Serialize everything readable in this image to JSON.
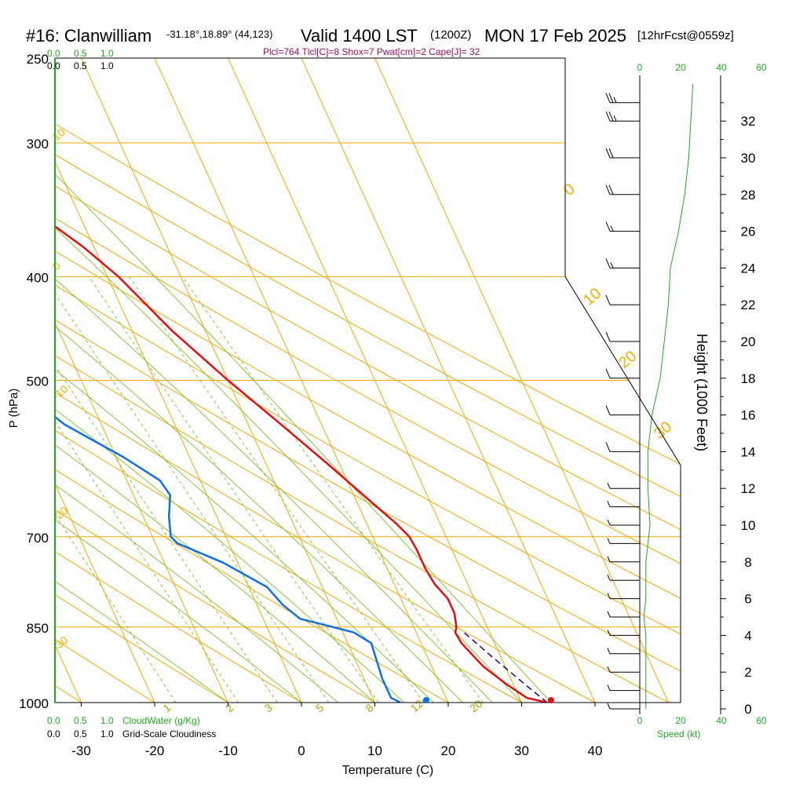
{
  "header": {
    "station": "#16: Clanwilliam",
    "coords": "-31.18°,18.89° (44,123)",
    "valid": "Valid 1400 LST",
    "utc": "(1200Z)",
    "date": "MON 17 Feb 2025",
    "forecast": "[12hrFcst@0559z]",
    "indices": "Plcl=764 Tlcl[C]=8 Shox=7 Pwat[cm]=2 Cape[J]= 32"
  },
  "colors": {
    "isobar": "#f2a800",
    "dry_adiabat": "#f2a800",
    "moist_adiabat": "#8cc43c",
    "mixing_ratio": "#8cc43c",
    "temperature": "#e01010",
    "dewpoint": "#1070e0",
    "parcel": "#200080",
    "speed": "#22aa22",
    "indices_text": "#a0105a"
  },
  "chart_data": {
    "type": "line",
    "subtype": "skew-T log-P sounding",
    "xlabel": "Temperature (C)",
    "ylabel": "P (hPa)",
    "y2label": "Height (1000 Feet)",
    "x_ticks": [
      "-30",
      "-20",
      "-10",
      "0",
      "10",
      "20",
      "30",
      "40"
    ],
    "y_ticks": [
      "250",
      "300",
      "400",
      "500",
      "700",
      "850",
      "1000"
    ],
    "height_ticks": [
      "0",
      "2",
      "4",
      "6",
      "8",
      "10",
      "12",
      "14",
      "16",
      "18",
      "20",
      "22",
      "24",
      "26",
      "28",
      "30",
      "32"
    ],
    "cloudwater_scale": [
      "0.0",
      "0.5",
      "1.0"
    ],
    "cloudiness_scale": [
      "0.0",
      "0.5",
      "1.0"
    ],
    "cloudwater_label": "CloudWater (g/Kg)",
    "cloudiness_label": "Grid-Scale Cloudiness",
    "speed_ticks": [
      "0",
      "20",
      "40",
      "60"
    ],
    "speed_label": "Speed (kt)",
    "dry_adiabat_labels": [
      "10",
      "0",
      "-10",
      "-20",
      "-30",
      "0",
      "10",
      "20",
      "30"
    ],
    "mixing_ratio_labels": [
      "1",
      "2",
      "3",
      "5",
      "8",
      "12",
      "20"
    ],
    "temperature": [
      {
        "p": 1000,
        "t": 33.5
      },
      {
        "p": 990,
        "t": 31.0
      },
      {
        "p": 960,
        "t": 29.0
      },
      {
        "p": 925,
        "t": 27.0
      },
      {
        "p": 880,
        "t": 25.5
      },
      {
        "p": 860,
        "t": 25.3
      },
      {
        "p": 850,
        "t": 25.8
      },
      {
        "p": 825,
        "t": 26.4
      },
      {
        "p": 800,
        "t": 26.4
      },
      {
        "p": 775,
        "t": 25.5
      },
      {
        "p": 750,
        "t": 25.2
      },
      {
        "p": 720,
        "t": 25.2
      },
      {
        "p": 700,
        "t": 25.0
      },
      {
        "p": 680,
        "t": 24.0
      },
      {
        "p": 650,
        "t": 22.0
      },
      {
        "p": 600,
        "t": 18.5
      },
      {
        "p": 550,
        "t": 14.5
      },
      {
        "p": 500,
        "t": 10.0
      },
      {
        "p": 450,
        "t": 5.5
      },
      {
        "p": 400,
        "t": 1.5
      },
      {
        "p": 375,
        "t": -1.5
      },
      {
        "p": 350,
        "t": -5.5
      },
      {
        "p": 300,
        "t": -14.5
      },
      {
        "p": 280,
        "t": -19.0
      },
      {
        "p": 265,
        "t": -21.5
      }
    ],
    "dewpoint": [
      {
        "p": 1000,
        "t": 13.5
      },
      {
        "p": 990,
        "t": 12.5
      },
      {
        "p": 950,
        "t": 12.5
      },
      {
        "p": 900,
        "t": 13.0
      },
      {
        "p": 880,
        "t": 13.2
      },
      {
        "p": 860,
        "t": 11.5
      },
      {
        "p": 850,
        "t": 9.0
      },
      {
        "p": 835,
        "t": 5.0
      },
      {
        "p": 810,
        "t": 3.5
      },
      {
        "p": 780,
        "t": 2.5
      },
      {
        "p": 740,
        "t": -2.0
      },
      {
        "p": 710,
        "t": -7.0
      },
      {
        "p": 700,
        "t": -7.5
      },
      {
        "p": 670,
        "t": -6.5
      },
      {
        "p": 640,
        "t": -5.0
      },
      {
        "p": 620,
        "t": -5.5
      },
      {
        "p": 590,
        "t": -9.0
      },
      {
        "p": 550,
        "t": -15.0
      },
      {
        "p": 500,
        "t": -20.0
      },
      {
        "p": 450,
        "t": -18.0
      },
      {
        "p": 430,
        "t": -18.0
      },
      {
        "p": 400,
        "t": -25.0
      },
      {
        "p": 370,
        "t": -30.5
      },
      {
        "p": 340,
        "t": -29.0
      },
      {
        "p": 300,
        "t": -32.0
      },
      {
        "p": 265,
        "t": -37.0
      }
    ],
    "parcel": [
      {
        "p": 1000,
        "t": 33.5
      },
      {
        "p": 960,
        "t": 31.5
      },
      {
        "p": 900,
        "t": 28.5
      },
      {
        "p": 860,
        "t": 26.5
      }
    ],
    "surface_temperature": 34.0,
    "surface_dewpoint": 17.0,
    "cloud_top_height_kft": 13,
    "wind_speed_profile": [
      {
        "h": 0,
        "s": 3
      },
      {
        "h": 2,
        "s": 3
      },
      {
        "h": 4,
        "s": 3
      },
      {
        "h": 5,
        "s": 2
      },
      {
        "h": 6,
        "s": 3
      },
      {
        "h": 8,
        "s": 3
      },
      {
        "h": 10,
        "s": 5
      },
      {
        "h": 12,
        "s": 4
      },
      {
        "h": 14,
        "s": 4
      },
      {
        "h": 16,
        "s": 6
      },
      {
        "h": 18,
        "s": 10
      },
      {
        "h": 20,
        "s": 12
      },
      {
        "h": 22,
        "s": 14
      },
      {
        "h": 24,
        "s": 15
      },
      {
        "h": 26,
        "s": 19
      },
      {
        "h": 28,
        "s": 22
      },
      {
        "h": 30,
        "s": 24
      },
      {
        "h": 32,
        "s": 25
      },
      {
        "h": 34,
        "s": 26
      }
    ],
    "wind_barbs": [
      {
        "h": 0,
        "s": 5
      },
      {
        "h": 1,
        "s": 5
      },
      {
        "h": 2,
        "s": 5
      },
      {
        "h": 3,
        "s": 5
      },
      {
        "h": 4,
        "s": 5
      },
      {
        "h": 5,
        "s": 5
      },
      {
        "h": 6,
        "s": 5
      },
      {
        "h": 7,
        "s": 5
      },
      {
        "h": 8,
        "s": 5
      },
      {
        "h": 9,
        "s": 5
      },
      {
        "h": 10,
        "s": 5
      },
      {
        "h": 11,
        "s": 5
      },
      {
        "h": 12,
        "s": 5
      },
      {
        "h": 14,
        "s": 10
      },
      {
        "h": 16,
        "s": 10
      },
      {
        "h": 18,
        "s": 10
      },
      {
        "h": 20,
        "s": 10
      },
      {
        "h": 22,
        "s": 10
      },
      {
        "h": 24,
        "s": 15
      },
      {
        "h": 26,
        "s": 15
      },
      {
        "h": 28,
        "s": 20
      },
      {
        "h": 30,
        "s": 20
      },
      {
        "h": 32,
        "s": 25
      },
      {
        "h": 33,
        "s": 25
      }
    ]
  }
}
